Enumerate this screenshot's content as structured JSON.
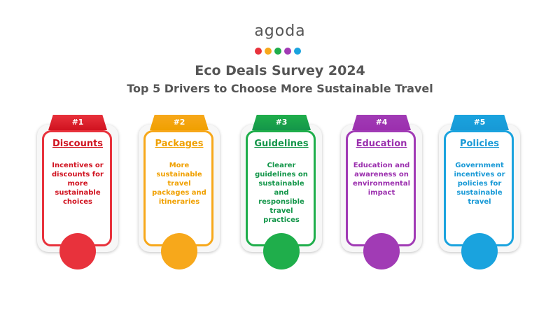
{
  "logo": "agoda",
  "header": {
    "title": "Eco Deals Survey 2024",
    "subtitle": "Top 5 Drivers to Choose More Sustainable Travel"
  },
  "cards": [
    {
      "rank": "#1",
      "heading": "Discounts",
      "body": "Incentives or discounts for more sustainable choices"
    },
    {
      "rank": "#2",
      "heading": "Packages",
      "body": "More sustainable travel packages and itineraries"
    },
    {
      "rank": "#3",
      "heading": "Guidelines",
      "body": "Clearer guidelines on sustainable and responsible travel practices"
    },
    {
      "rank": "#4",
      "heading": "Education",
      "body": "Education and awareness on environmental impact"
    },
    {
      "rank": "#5",
      "heading": "Policies",
      "body": "Government incentives or policies for sustainable travel"
    }
  ]
}
